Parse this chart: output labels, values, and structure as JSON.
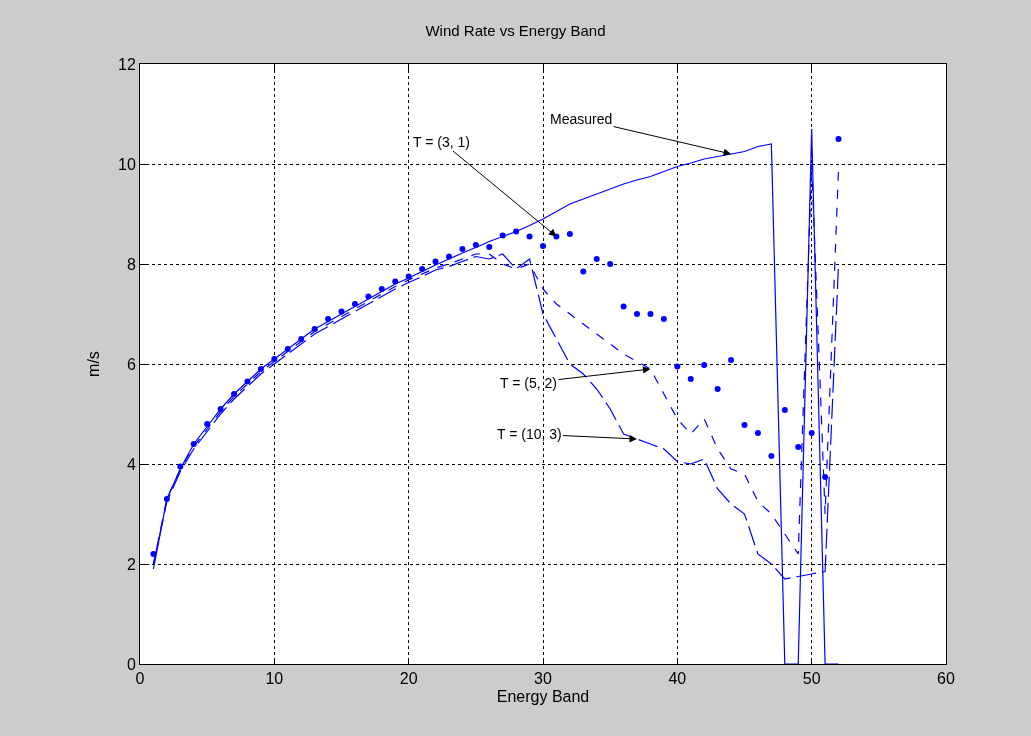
{
  "chart_data": {
    "type": "line",
    "title": "Wind Rate vs Energy Band",
    "xlabel": "Energy Band",
    "ylabel": "m/s",
    "xlim": [
      0,
      60
    ],
    "xticks": [
      0,
      10,
      20,
      30,
      40,
      50,
      60
    ],
    "ylim": [
      0,
      12
    ],
    "yticks": [
      0,
      2,
      4,
      6,
      8,
      10,
      12
    ],
    "grid": true,
    "x": [
      1,
      2,
      3,
      4,
      5,
      6,
      7,
      8,
      9,
      10,
      11,
      12,
      13,
      14,
      15,
      16,
      17,
      18,
      19,
      20,
      21,
      22,
      23,
      24,
      25,
      26,
      27,
      28,
      29,
      30,
      31,
      32,
      33,
      34,
      35,
      36,
      37,
      38,
      39,
      40,
      41,
      42,
      43,
      44,
      45,
      46,
      47,
      48,
      49,
      50,
      51,
      52
    ],
    "series": [
      {
        "line_style": "solid",
        "color": "#0000ff",
        "values": [
          1.9,
          3.3,
          3.9,
          4.4,
          4.75,
          5.1,
          5.4,
          5.65,
          5.9,
          6.1,
          6.3,
          6.5,
          6.7,
          6.85,
          7.0,
          7.15,
          7.3,
          7.45,
          7.6,
          7.72,
          7.85,
          7.98,
          8.1,
          8.22,
          8.33,
          8.45,
          8.55,
          8.65,
          8.77,
          8.9,
          9.05,
          9.2,
          9.3,
          9.4,
          9.5,
          9.6,
          9.68,
          9.75,
          9.85,
          9.95,
          10.02,
          10.1,
          10.15,
          10.2,
          10.25,
          10.35,
          10.4,
          0,
          0,
          10.7,
          0,
          0
        ]
      },
      {
        "type": "scatter",
        "marker": "circle",
        "color": "#0000ff",
        "values": [
          2.2,
          3.3,
          3.95,
          4.4,
          4.8,
          5.1,
          5.4,
          5.65,
          5.9,
          6.1,
          6.3,
          6.5,
          6.7,
          6.9,
          7.05,
          7.2,
          7.35,
          7.5,
          7.65,
          7.75,
          7.9,
          8.05,
          8.15,
          8.3,
          8.38,
          8.34,
          8.57,
          8.65,
          8.55,
          8.36,
          8.55,
          8.6,
          7.85,
          8.1,
          8.0,
          7.15,
          7.0,
          7.0,
          6.9,
          5.95,
          5.7,
          5.98,
          5.5,
          6.08,
          4.78,
          4.62,
          4.16,
          5.08,
          4.34,
          4.62,
          3.74,
          10.5
        ]
      },
      {
        "line_style": "dashed",
        "color": "#0000ff",
        "values": [
          2.0,
          3.3,
          3.9,
          4.35,
          4.7,
          5.05,
          5.35,
          5.6,
          5.85,
          6.05,
          6.25,
          6.45,
          6.65,
          6.8,
          6.95,
          7.1,
          7.25,
          7.4,
          7.55,
          7.68,
          7.8,
          7.92,
          8.0,
          8.1,
          8.2,
          8.2,
          8.0,
          7.9,
          8.0,
          7.5,
          7.2,
          7.0,
          6.8,
          6.6,
          6.4,
          6.2,
          6.05,
          5.9,
          5.4,
          4.9,
          4.6,
          4.9,
          4.3,
          3.9,
          3.8,
          3.25,
          3.0,
          2.6,
          2.2,
          10.0,
          3.0,
          9.9
        ]
      },
      {
        "line_style": "dashed",
        "color": "#0000ff",
        "values": [
          2.0,
          3.25,
          3.85,
          4.3,
          4.65,
          5.0,
          5.3,
          5.55,
          5.8,
          6.0,
          6.2,
          6.4,
          6.6,
          6.75,
          6.9,
          7.05,
          7.2,
          7.35,
          7.5,
          7.63,
          7.75,
          7.88,
          7.95,
          8.05,
          8.15,
          8.1,
          8.2,
          7.9,
          8.1,
          7.0,
          6.5,
          6.0,
          5.8,
          5.5,
          5.1,
          4.6,
          4.5,
          4.4,
          4.3,
          4.05,
          4.0,
          4.1,
          3.5,
          3.2,
          3.0,
          2.2,
          2.0,
          1.7,
          1.75,
          1.8,
          1.85,
          8.0
        ]
      }
    ],
    "annotations": [
      {
        "text": "Measured",
        "x": 44,
        "y": 10.2
      },
      {
        "text": "T = (3, 1)",
        "x": 31,
        "y": 8.55
      },
      {
        "text": "T = (5, 2)",
        "x": 38,
        "y": 5.9
      },
      {
        "text": "T = (10, 3)",
        "x": 37,
        "y": 4.5
      }
    ]
  }
}
